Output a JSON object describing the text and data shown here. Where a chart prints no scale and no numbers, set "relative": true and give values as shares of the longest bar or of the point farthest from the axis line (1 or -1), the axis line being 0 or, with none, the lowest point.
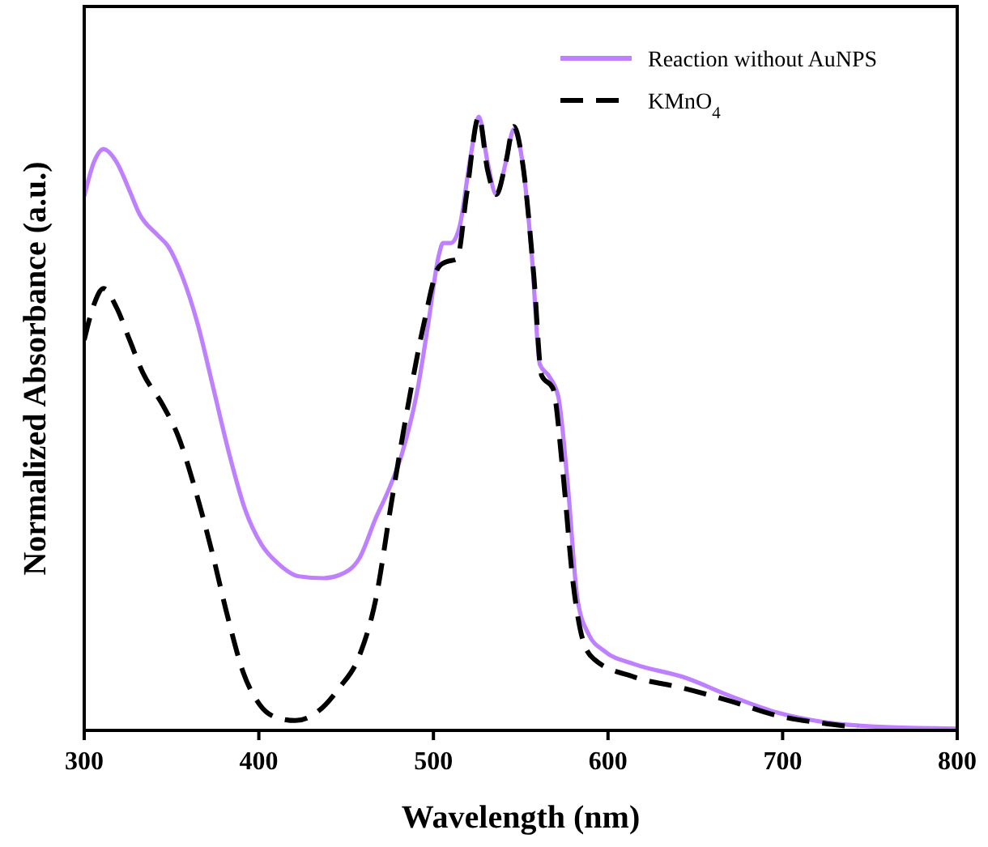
{
  "chart_data": {
    "type": "line",
    "relative": true,
    "xlabel": "Wavelength (nm)",
    "ylabel": "Normalized Absorbance (a.u.)",
    "xlim": [
      300,
      800
    ],
    "xticks": [
      300,
      400,
      500,
      600,
      700,
      800
    ],
    "legend": "top right",
    "series": [
      {
        "name": "Reaction without AuNPS",
        "color": "#bf80ff",
        "line_style": "solid",
        "x": [
          300,
          305.6,
          311,
          318.5,
          326,
          331.5,
          342,
          348,
          356,
          365,
          374,
          383,
          392,
          401.5,
          411,
          423,
          437,
          446,
          457.5,
          467,
          474.5,
          482,
          491,
          497,
          503,
          505.5,
          510,
          515,
          521.5,
          526,
          531,
          536,
          541.5,
          546,
          551,
          556.5,
          561,
          566,
          571.5,
          577,
          582.5,
          589,
          598,
          615,
          643,
          671,
          697,
          725,
          762,
          800
        ],
        "values": [
          0.87,
          0.926,
          0.947,
          0.926,
          0.879,
          0.842,
          0.807,
          0.789,
          0.741,
          0.662,
          0.557,
          0.451,
          0.361,
          0.303,
          0.272,
          0.251,
          0.248,
          0.253,
          0.28,
          0.346,
          0.393,
          0.451,
          0.557,
          0.662,
          0.773,
          0.794,
          0.794,
          0.821,
          0.939,
          1.0,
          0.926,
          0.873,
          0.926,
          0.979,
          0.926,
          0.768,
          0.596,
          0.578,
          0.544,
          0.398,
          0.214,
          0.156,
          0.129,
          0.108,
          0.087,
          0.055,
          0.029,
          0.013,
          0.005,
          0.003
        ]
      },
      {
        "name": "KMnO$_{4}$",
        "color": "#000000",
        "line_style": "dashed",
        "x": [
          300,
          305.6,
          311,
          318.5,
          326,
          333.5,
          345,
          354,
          363,
          373,
          382,
          391,
          400.5,
          410,
          421,
          433,
          446,
          457.5,
          467,
          476,
          485.5,
          494.5,
          503,
          507,
          513.5,
          519,
          526,
          531,
          536,
          541.5,
          546,
          551,
          557.5,
          562,
          568.5,
          574,
          580,
          585.5,
          592,
          615,
          643,
          671,
          697,
          725,
          743
        ],
        "values": [
          0.636,
          0.694,
          0.72,
          0.689,
          0.636,
          0.583,
          0.53,
          0.478,
          0.398,
          0.293,
          0.187,
          0.095,
          0.042,
          0.021,
          0.016,
          0.029,
          0.069,
          0.121,
          0.214,
          0.372,
          0.53,
          0.662,
          0.755,
          0.763,
          0.768,
          0.873,
          1.0,
          0.913,
          0.873,
          0.926,
          0.984,
          0.926,
          0.741,
          0.578,
          0.557,
          0.425,
          0.24,
          0.148,
          0.116,
          0.087,
          0.069,
          0.047,
          0.024,
          0.011,
          0.005
        ]
      }
    ]
  }
}
